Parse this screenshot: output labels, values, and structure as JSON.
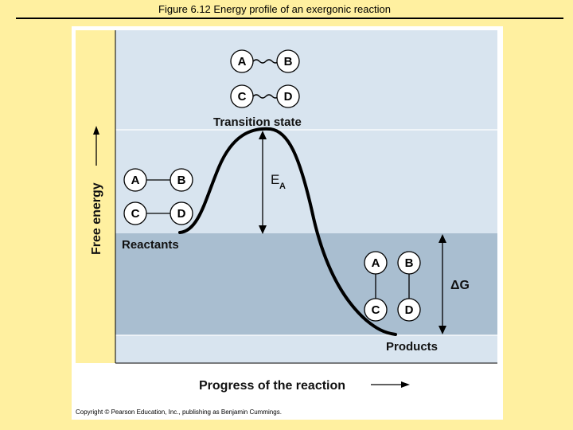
{
  "header": {
    "title": "Figure 6.12  Energy profile of an exergonic reaction"
  },
  "labels": {
    "transition_state": "Transition state",
    "reactants": "Reactants",
    "products": "Products",
    "y_axis": "Free energy",
    "x_axis": "Progress of the reaction",
    "activation_energy": "E",
    "activation_energy_subscript": "A",
    "delta_g": "ΔG"
  },
  "molecules": {
    "a": "A",
    "b": "B",
    "c": "C",
    "d": "D"
  },
  "copyright": "Copyright © Pearson Education, Inc., publishing as Benjamin Cummings.",
  "colors": {
    "page_bg": "#FFF0A0",
    "band_light": "#D8E4EF",
    "band_dark": "#A9BED0",
    "curve": "#000000"
  }
}
